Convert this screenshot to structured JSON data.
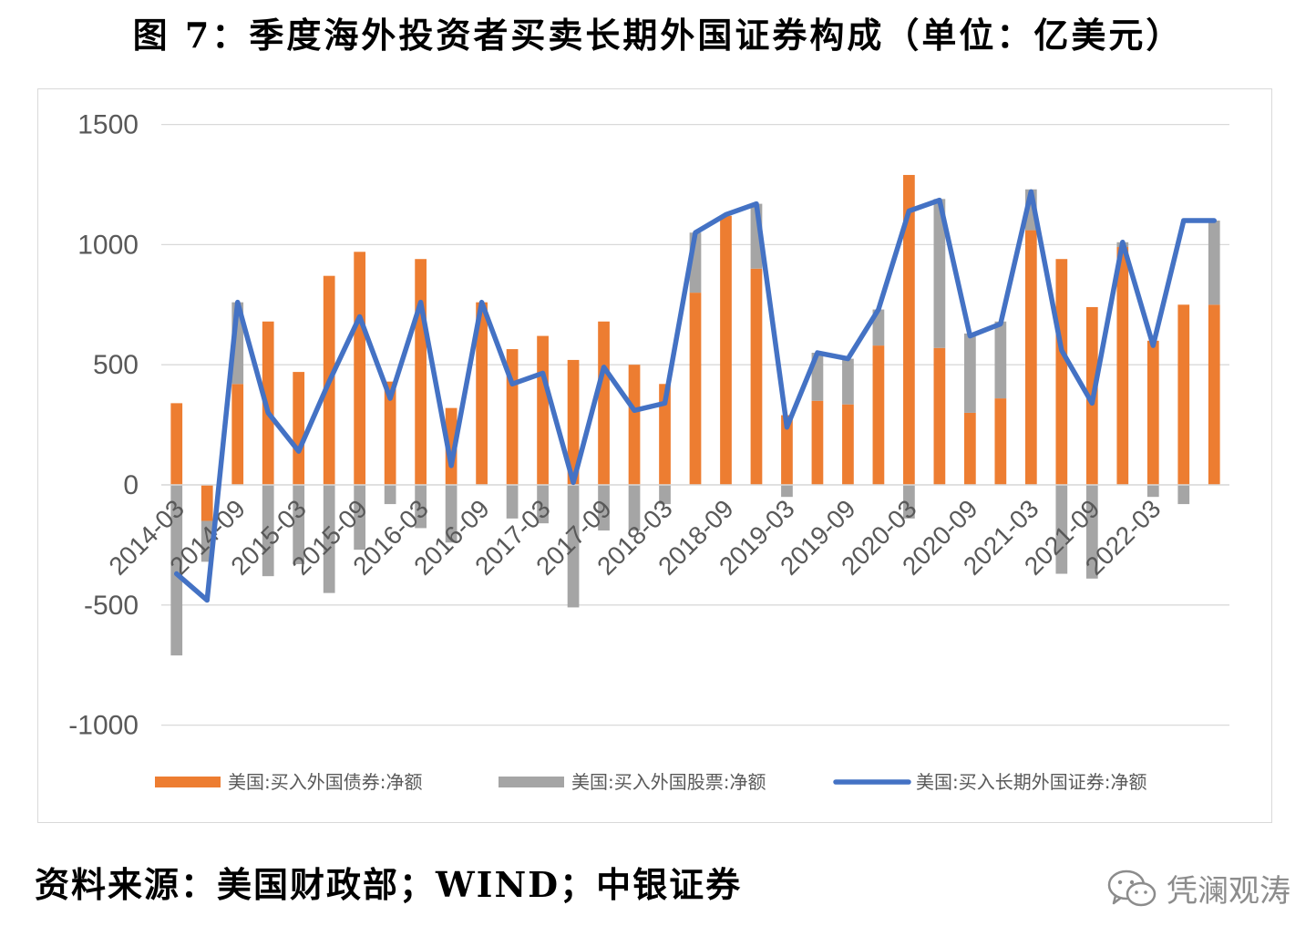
{
  "header": {
    "title": "图 7：季度海外投资者买卖长期外国证券构成（单位：亿美元）"
  },
  "footer": {
    "source": "资料来源：美国财政部；WIND；中银证券",
    "watermark": "凭澜观涛"
  },
  "colors": {
    "bond": "#ED7D31",
    "stock": "#A5A5A5",
    "total": "#4472C4",
    "grid": "#D9D9D9",
    "watermark": "#8C8C8C"
  },
  "icons": {
    "watermark": "wechat-logo-icon"
  },
  "chart_data": {
    "type": "bar",
    "stacked": true,
    "title": "",
    "xlabel": "",
    "ylabel": "",
    "ylim": [
      -1000,
      1500
    ],
    "yticks": [
      1500,
      1000,
      500,
      0,
      -500,
      -1000
    ],
    "grid": true,
    "legend_position": "bottom",
    "categories": [
      "2014-03",
      "2014-06",
      "2014-09",
      "2014-12",
      "2015-03",
      "2015-06",
      "2015-09",
      "2015-12",
      "2016-03",
      "2016-06",
      "2016-09",
      "2016-12",
      "2017-03",
      "2017-06",
      "2017-09",
      "2017-12",
      "2018-03",
      "2018-06",
      "2018-09",
      "2018-12",
      "2019-03",
      "2019-06",
      "2019-09",
      "2019-12",
      "2020-03",
      "2020-06",
      "2020-09",
      "2020-12",
      "2021-03",
      "2021-06",
      "2021-09",
      "2021-12",
      "2022-03",
      "2022-06",
      "2022-09"
    ],
    "x_tick_labels": [
      "2014-03",
      "2014-09",
      "2015-03",
      "2015-09",
      "2016-03",
      "2016-09",
      "2017-03",
      "2017-09",
      "2018-03",
      "2018-09",
      "2019-03",
      "2019-09",
      "2020-03",
      "2020-09",
      "2021-03",
      "2021-09",
      "2022-03"
    ],
    "series": [
      {
        "name": "美国:买入外国债券:净额",
        "kind": "bar",
        "values": [
          340,
          -150,
          420,
          680,
          470,
          870,
          970,
          430,
          940,
          320,
          760,
          565,
          620,
          520,
          680,
          500,
          420,
          800,
          1120,
          900,
          290,
          350,
          335,
          580,
          1290,
          570,
          300,
          360,
          1060,
          940,
          740,
          990,
          600,
          750,
          750
        ]
      },
      {
        "name": "美国:买入外国股票:净额",
        "kind": "bar",
        "values": [
          -710,
          -170,
          340,
          -380,
          -330,
          -450,
          -270,
          -80,
          -180,
          -240,
          0,
          -140,
          -160,
          -510,
          -190,
          -190,
          -80,
          250,
          0,
          270,
          -50,
          200,
          190,
          150,
          -140,
          620,
          330,
          320,
          170,
          -370,
          -390,
          20,
          -50,
          -80,
          350
        ]
      },
      {
        "name": "美国:买入长期外国证券:净额",
        "kind": "line",
        "values": [
          -370,
          -480,
          760,
          300,
          140,
          430,
          700,
          360,
          760,
          80,
          760,
          420,
          465,
          10,
          490,
          310,
          340,
          1050,
          1125,
          1170,
          240,
          550,
          525,
          730,
          1140,
          1185,
          620,
          670,
          1220,
          560,
          340,
          1010,
          580,
          1100,
          1100
        ]
      }
    ]
  }
}
